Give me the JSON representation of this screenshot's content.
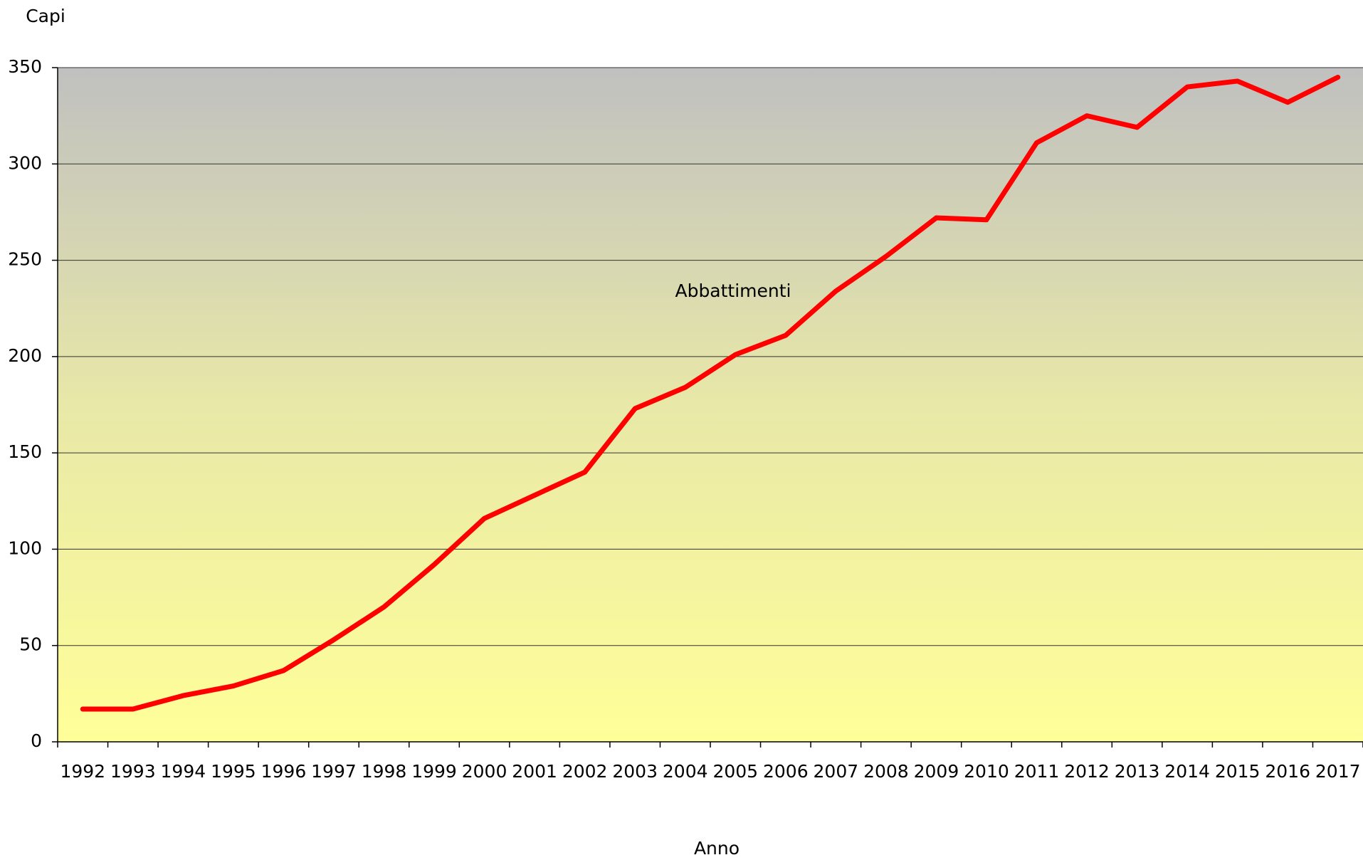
{
  "chart_data": {
    "type": "line",
    "y_label": "Capi",
    "x_label": "Anno",
    "categories": [
      "1992",
      "1993",
      "1994",
      "1995",
      "1996",
      "1997",
      "1998",
      "1999",
      "2000",
      "2001",
      "2002",
      "2003",
      "2004",
      "2005",
      "2006",
      "2007",
      "2008",
      "2009",
      "2010",
      "2011",
      "2012",
      "2013",
      "2014",
      "2015",
      "2016",
      "2017"
    ],
    "series": [
      {
        "name": "Abbattimenti",
        "color": "#ff0000",
        "values": [
          17,
          17,
          24,
          29,
          37,
          53,
          70,
          92,
          116,
          128,
          140,
          173,
          184,
          201,
          211,
          234,
          252,
          272,
          271,
          311,
          325,
          319,
          340,
          343,
          332,
          345
        ]
      }
    ],
    "ylim": [
      0,
      350
    ],
    "yticks": [
      0,
      50,
      100,
      150,
      200,
      250,
      300,
      350
    ],
    "grid": true
  }
}
